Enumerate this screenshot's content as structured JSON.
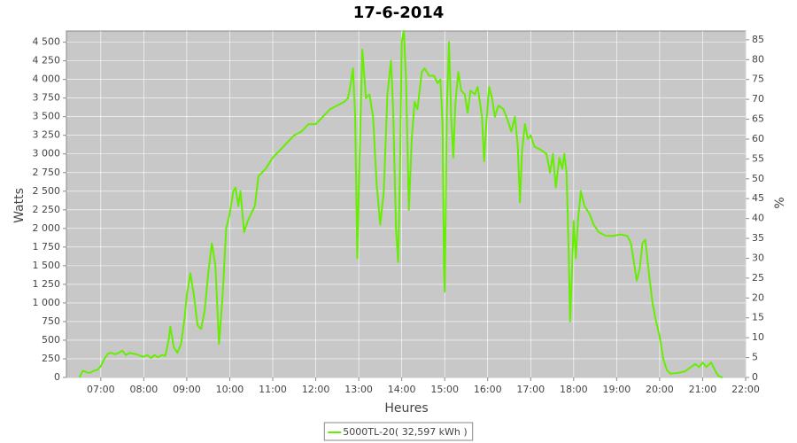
{
  "chart_data": {
    "type": "line",
    "title": "17-6-2014",
    "xlabel": "Heures",
    "ylabel": "Watts",
    "y2label": "%",
    "legend": "bottom",
    "grid": true,
    "background": "#c8c8c8",
    "xlim": [
      "06:12",
      "22:00"
    ],
    "xticks": [
      "07:00",
      "08:00",
      "09:00",
      "10:00",
      "11:00",
      "12:00",
      "13:00",
      "14:00",
      "15:00",
      "16:00",
      "17:00",
      "18:00",
      "19:00",
      "20:00",
      "21:00",
      "22:00"
    ],
    "ylim": [
      0,
      4650
    ],
    "yticks": [
      0,
      250,
      500,
      750,
      {
        "value": 1000,
        "label": "1 000"
      },
      {
        "value": 1250,
        "label": "1 250"
      },
      {
        "value": 1500,
        "label": "1 500"
      },
      {
        "value": 1750,
        "label": "1 750"
      },
      {
        "value": 2000,
        "label": "2 000"
      },
      {
        "value": 2250,
        "label": "2 250"
      },
      {
        "value": 2500,
        "label": "2 500"
      },
      {
        "value": 2750,
        "label": "2 750"
      },
      {
        "value": 3000,
        "label": "3 000"
      },
      {
        "value": 3250,
        "label": "3 250"
      },
      {
        "value": 3500,
        "label": "3 500"
      },
      {
        "value": 3750,
        "label": "3 750"
      },
      {
        "value": 4000,
        "label": "4 000"
      },
      {
        "value": 4250,
        "label": "4 250"
      },
      {
        "value": 4500,
        "label": "4 500"
      }
    ],
    "y2lim": [
      0,
      87.2
    ],
    "y2ticks": [
      0,
      5,
      10,
      15,
      20,
      25,
      30,
      35,
      40,
      45,
      50,
      55,
      60,
      65,
      70,
      75,
      80,
      85
    ],
    "x": [
      "06:30",
      "06:35",
      "06:40",
      "06:45",
      "06:50",
      "06:55",
      "07:00",
      "07:05",
      "07:10",
      "07:15",
      "07:20",
      "07:25",
      "07:30",
      "07:35",
      "07:40",
      "07:45",
      "07:50",
      "07:55",
      "08:00",
      "08:05",
      "08:10",
      "08:15",
      "08:20",
      "08:25",
      "08:30",
      "08:35",
      "08:37",
      "08:42",
      "08:47",
      "08:52",
      "08:57",
      "09:00",
      "09:05",
      "09:10",
      "09:15",
      "09:20",
      "09:25",
      "09:30",
      "09:35",
      "09:40",
      "09:45",
      "09:50",
      "09:55",
      "10:00",
      "10:05",
      "10:08",
      "10:12",
      "10:15",
      "10:20",
      "10:25",
      "10:30",
      "10:35",
      "10:40",
      "10:45",
      "10:50",
      "11:00",
      "11:10",
      "11:20",
      "11:30",
      "11:40",
      "11:50",
      "12:00",
      "12:10",
      "12:20",
      "12:30",
      "12:40",
      "12:45",
      "12:48",
      "12:52",
      "12:55",
      "12:58",
      "13:00",
      "13:05",
      "13:10",
      "13:15",
      "13:20",
      "13:25",
      "13:30",
      "13:35",
      "13:40",
      "13:45",
      "13:48",
      "13:52",
      "13:55",
      "13:58",
      "14:00",
      "14:03",
      "14:06",
      "14:10",
      "14:14",
      "14:18",
      "14:22",
      "14:28",
      "14:32",
      "14:38",
      "14:45",
      "14:50",
      "14:54",
      "14:57",
      "14:59",
      "15:00",
      "15:03",
      "15:06",
      "15:09",
      "15:12",
      "15:15",
      "15:19",
      "15:23",
      "15:28",
      "15:32",
      "15:36",
      "15:42",
      "15:46",
      "15:52",
      "15:55",
      "15:58",
      "16:02",
      "16:06",
      "16:10",
      "16:15",
      "16:22",
      "16:28",
      "16:33",
      "16:38",
      "16:42",
      "16:45",
      "16:48",
      "16:52",
      "16:56",
      "17:00",
      "17:05",
      "17:15",
      "17:22",
      "17:27",
      "17:31",
      "17:35",
      "17:40",
      "17:44",
      "17:47",
      "17:50",
      "17:53",
      "17:55",
      "17:58",
      "18:00",
      "18:03",
      "18:06",
      "18:10",
      "18:15",
      "18:22",
      "18:28",
      "18:35",
      "18:45",
      "18:55",
      "19:05",
      "19:15",
      "19:20",
      "19:24",
      "19:28",
      "19:32",
      "19:36",
      "19:40",
      "19:45",
      "19:50",
      "19:55",
      "20:00",
      "20:05",
      "20:10",
      "20:15",
      "20:25",
      "20:35",
      "20:45",
      "20:50",
      "20:55",
      "21:00",
      "21:05",
      "21:12",
      "21:18",
      "21:22",
      "21:28"
    ],
    "series": [
      {
        "name": "5000TL-20( 32,597 kWh )",
        "color": "#66ee00",
        "values": [
          0,
          90,
          70,
          60,
          90,
          100,
          150,
          250,
          320,
          330,
          310,
          330,
          360,
          300,
          330,
          320,
          310,
          290,
          280,
          300,
          260,
          300,
          270,
          300,
          290,
          520,
          680,
          400,
          330,
          450,
          800,
          1100,
          1400,
          1100,
          700,
          650,
          900,
          1400,
          1800,
          1500,
          450,
          1100,
          2000,
          2200,
          2500,
          2550,
          2300,
          2500,
          1950,
          2100,
          2200,
          2300,
          2700,
          2750,
          2800,
          2950,
          3050,
          3150,
          3250,
          3300,
          3400,
          3400,
          3500,
          3600,
          3650,
          3700,
          3750,
          3900,
          4150,
          3500,
          1600,
          2500,
          4400,
          3750,
          3800,
          3500,
          2600,
          2050,
          2500,
          3800,
          4250,
          3600,
          2000,
          1550,
          3000,
          4500,
          4650,
          4000,
          2250,
          3200,
          3700,
          3600,
          4100,
          4150,
          4050,
          4050,
          3950,
          4000,
          3400,
          1450,
          1150,
          3600,
          4500,
          3500,
          2950,
          3700,
          4100,
          3850,
          3800,
          3550,
          3850,
          3800,
          3900,
          3500,
          2900,
          3400,
          3900,
          3750,
          3500,
          3650,
          3600,
          3450,
          3300,
          3500,
          3100,
          2350,
          3050,
          3400,
          3200,
          3250,
          3100,
          3050,
          3000,
          2750,
          3000,
          2550,
          2950,
          2800,
          3000,
          2750,
          1700,
          750,
          1500,
          2100,
          1600,
          2100,
          2500,
          2300,
          2200,
          2050,
          1950,
          1900,
          1900,
          1920,
          1900,
          1800,
          1550,
          1300,
          1450,
          1800,
          1850,
          1400,
          1000,
          750,
          550,
          250,
          100,
          50,
          60,
          80,
          150,
          180,
          140,
          200,
          140,
          200,
          80,
          20,
          0
        ]
      }
    ]
  }
}
